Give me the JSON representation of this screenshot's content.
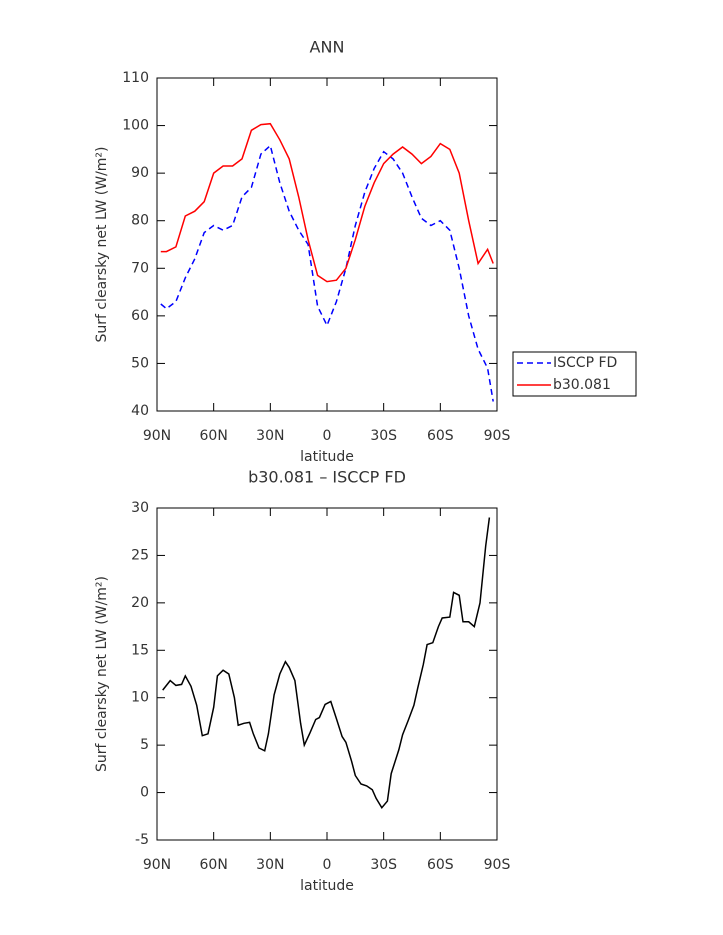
{
  "chart_data": [
    {
      "type": "line",
      "title": "ANN",
      "xlabel": "latitude",
      "ylabel": "Surf clearsky net LW (W/m²)",
      "x": [
        88,
        85,
        80,
        75,
        70,
        65,
        60,
        55,
        50,
        45,
        40,
        35,
        30,
        25,
        20,
        15,
        10,
        5,
        0,
        -5,
        -10,
        -15,
        -20,
        -25,
        -30,
        -35,
        -40,
        -45,
        -50,
        -55,
        -60,
        -65,
        -70,
        -75,
        -80,
        -85,
        -88
      ],
      "series": [
        {
          "name": "ISCCP FD",
          "color": "#0000ff",
          "linestyle": "dashed",
          "values": [
            62.5,
            61.5,
            63,
            68,
            72,
            77.5,
            79,
            78,
            79,
            85,
            87,
            94,
            95.8,
            88,
            82,
            78,
            75,
            62,
            58,
            63,
            70,
            79,
            86,
            91,
            94.5,
            93,
            90,
            85,
            80.5,
            79,
            80,
            78,
            70,
            60,
            53,
            49,
            42
          ]
        },
        {
          "name": "b30.081",
          "color": "#ff0000",
          "linestyle": "solid",
          "values": [
            73.5,
            73.5,
            74.5,
            81,
            82,
            84,
            90,
            91.5,
            91.5,
            93,
            99,
            100.2,
            100.4,
            97,
            93,
            85,
            76,
            68.5,
            67.2,
            67.5,
            70,
            76,
            83,
            88,
            92,
            94,
            95.5,
            94,
            92,
            93.5,
            96.2,
            95,
            90,
            80,
            71,
            74,
            71
          ]
        }
      ],
      "xlim": [
        90,
        -90
      ],
      "xticks": [
        {
          "value": 90,
          "label": "90N"
        },
        {
          "value": 60,
          "label": "60N"
        },
        {
          "value": 30,
          "label": "30N"
        },
        0,
        {
          "value": -30,
          "label": "30S"
        },
        {
          "value": -60,
          "label": "60S"
        },
        {
          "value": -90,
          "label": "90S"
        }
      ],
      "ylim": [
        40,
        110
      ],
      "yticks": [
        40,
        50,
        60,
        70,
        80,
        90,
        100,
        110
      ],
      "legend": "outside-right"
    },
    {
      "type": "line",
      "title": "b30.081 – ISCCP FD",
      "xlabel": "latitude",
      "ylabel": "Surf clearsky net LW (W/m²)",
      "x": [
        87,
        83,
        80,
        77,
        75,
        72,
        69,
        66,
        63,
        60,
        58,
        55,
        52,
        49,
        47,
        44,
        41,
        39,
        36,
        33,
        31,
        28,
        25,
        22,
        20,
        17,
        14,
        12,
        9,
        6,
        4,
        1,
        -2,
        -5,
        -8,
        -10,
        -13,
        -15,
        -18,
        -21,
        -24,
        -26,
        -29,
        -32,
        -34,
        -38,
        -40,
        -43,
        -46,
        -48,
        -51,
        -53,
        -56,
        -59,
        -61,
        -65,
        -67,
        -70,
        -72,
        -75,
        -78,
        -81,
        -84,
        -86
      ],
      "values": [
        10.8,
        11.8,
        11.3,
        11.4,
        12.3,
        11.2,
        9.2,
        6,
        6.2,
        9,
        12.3,
        12.9,
        12.5,
        10,
        7.1,
        7.3,
        7.4,
        6.2,
        4.7,
        4.4,
        6.2,
        10.3,
        12.5,
        13.8,
        13.2,
        11.8,
        7.3,
        5,
        6.3,
        7.7,
        7.9,
        9.3,
        9.6,
        7.8,
        5.9,
        5.3,
        3.3,
        1.8,
        0.9,
        0.7,
        0.3,
        -0.6,
        -1.6,
        -0.9,
        2,
        4.5,
        6.1,
        7.6,
        9.2,
        11,
        13.5,
        15.6,
        15.8,
        17.5,
        18.4,
        18.5,
        21.1,
        20.8,
        18,
        18,
        17.5,
        20,
        26,
        29
      ],
      "color": "#000000",
      "xlim": [
        90,
        -90
      ],
      "xticks": [
        {
          "value": 90,
          "label": "90N"
        },
        {
          "value": 60,
          "label": "60N"
        },
        {
          "value": 30,
          "label": "30N"
        },
        0,
        {
          "value": -30,
          "label": "30S"
        },
        {
          "value": -60,
          "label": "60S"
        },
        {
          "value": -90,
          "label": "90S"
        }
      ],
      "ylim": [
        -5,
        30
      ],
      "yticks": [
        -5,
        0,
        5,
        10,
        15,
        20,
        25,
        30
      ]
    }
  ]
}
